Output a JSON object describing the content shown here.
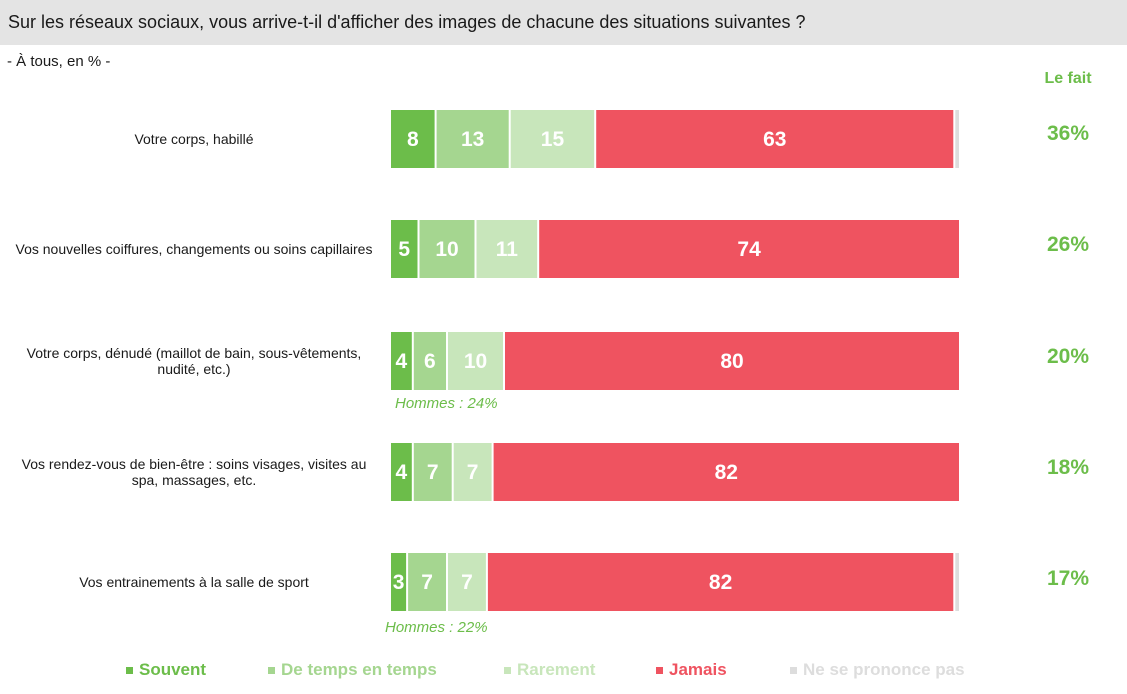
{
  "header": {
    "title": "Sur les réseaux sociaux, vous arrive-t-il d'afficher des images de chacune des situations suivantes ?",
    "subtitle": "- À tous, en % -",
    "lefait_label": "Le fait"
  },
  "colors": {
    "souvent": "#6cbd4a",
    "de_temps": "#a5d690",
    "rarement": "#c8e6bb",
    "jamais": "#ef5360",
    "nsp": "#dddddd",
    "accent_text": "#6cbd4a"
  },
  "chart_data": {
    "type": "bar",
    "orientation": "horizontal-stacked-100",
    "title": "Sur les réseaux sociaux, vous arrive-t-il d'afficher des images de chacune des situations suivantes ?",
    "subtitle": "- À tous, en % -",
    "categories": [
      "Votre corps, habillé",
      "Vos nouvelles coiffures, changements ou soins capillaires",
      "Votre corps, dénudé (maillot de bain, sous-vêtements, nudité, etc.)",
      "Vos rendez-vous de bien-être : soins visages, visites au spa, massages, etc.",
      "Vos entrainements à la salle de sport"
    ],
    "series": [
      {
        "name": "Souvent",
        "values": [
          8,
          5,
          4,
          4,
          3
        ]
      },
      {
        "name": "De temps en temps",
        "values": [
          13,
          10,
          6,
          7,
          7
        ]
      },
      {
        "name": "Rarement",
        "values": [
          15,
          11,
          10,
          7,
          7
        ]
      },
      {
        "name": "Jamais",
        "values": [
          63,
          74,
          80,
          82,
          82
        ]
      },
      {
        "name": "Ne se prononce pas",
        "values": [
          1,
          0,
          0,
          0,
          1
        ]
      }
    ],
    "lefait": [
      "36%",
      "26%",
      "20%",
      "18%",
      "17%"
    ],
    "notes": [
      "",
      "",
      "Hommes : 24%",
      "",
      "Hommes : 22%"
    ],
    "legend_position": "bottom",
    "xlim": [
      0,
      100
    ],
    "grid": false
  }
}
